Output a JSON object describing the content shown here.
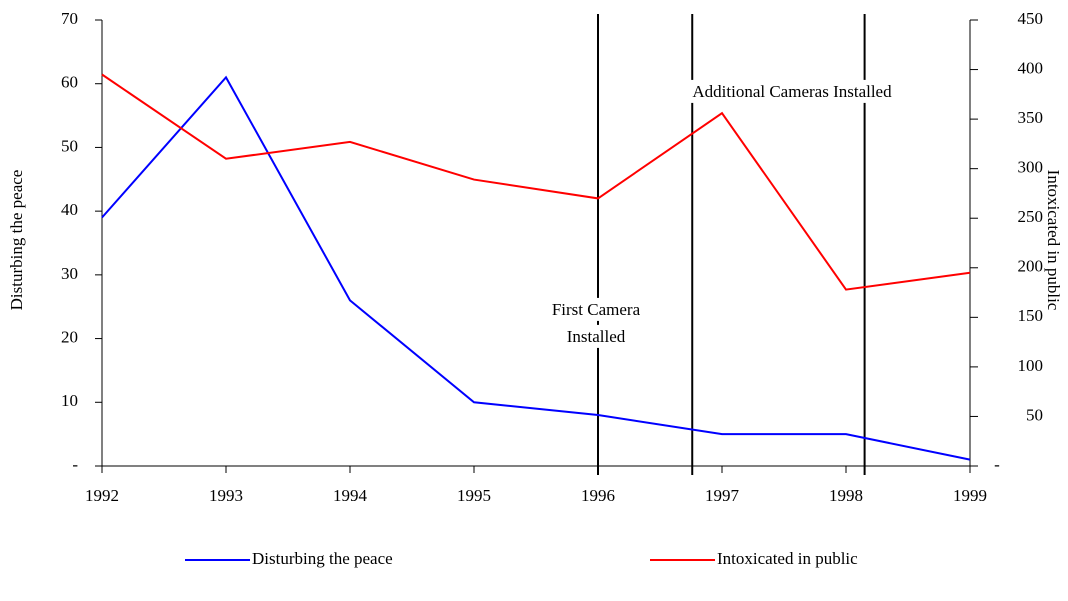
{
  "chart_data": {
    "type": "line",
    "x": [
      1992,
      1993,
      1994,
      1995,
      1996,
      1997,
      1998,
      1999
    ],
    "xlim": [
      1992,
      1999
    ],
    "xticks": [
      1992,
      1993,
      1994,
      1995,
      1996,
      1997,
      1998,
      1999
    ],
    "y_label": "Disturbing the peace",
    "y2_label": "Intoxicated in public",
    "ylim": [
      0,
      70
    ],
    "yticks": [
      {
        "value": 0,
        "label": "-"
      },
      10,
      20,
      30,
      40,
      50,
      60,
      70
    ],
    "y2lim": [
      0,
      450
    ],
    "y2ticks": [
      {
        "value": 0,
        "label": "-"
      },
      50,
      100,
      150,
      200,
      250,
      300,
      350,
      400,
      450
    ],
    "series": [
      {
        "name": "Disturbing the peace",
        "color": "#0000ff",
        "values": [
          39,
          61,
          26,
          10,
          8,
          5,
          5,
          1
        ]
      },
      {
        "name": "Intoxicated in public",
        "color": "#ff0000",
        "axis": "y2",
        "values": [
          395,
          310,
          327,
          289,
          270,
          356,
          178,
          195
        ]
      }
    ],
    "annotations": [
      {
        "x": 1996,
        "text": [
          "First Camera",
          "Installed"
        ]
      },
      {
        "x": 1996.76,
        "text": [
          "Additional Cameras Installed"
        ]
      },
      {
        "x": 1998.15
      }
    ]
  }
}
